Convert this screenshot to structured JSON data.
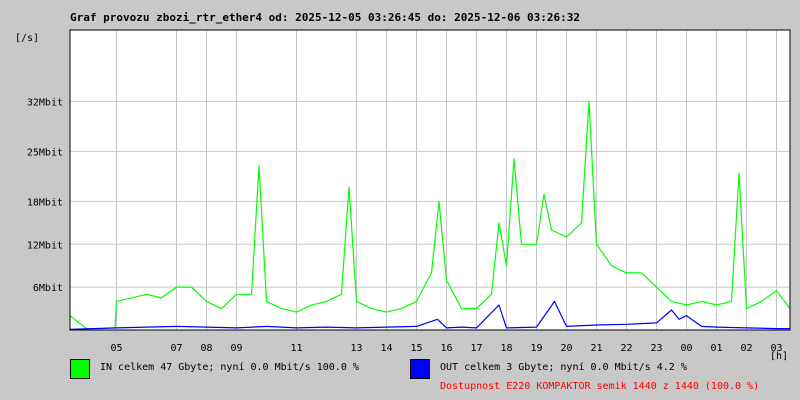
{
  "chart_data": {
    "type": "line",
    "title": "Graf provozu zbozi_rtr_ether4 od: 2025-12-05 03:26:45 do: 2025-12-06 03:26:32",
    "ylabel": "[/s]",
    "xlabel": "[h]",
    "ylim": [
      0,
      42
    ],
    "y_ticks": [
      {
        "value": 6,
        "label": "6Mbit"
      },
      {
        "value": 12,
        "label": "12Mbit"
      },
      {
        "value": 18,
        "label": "18Mbit"
      },
      {
        "value": 25,
        "label": "25Mbit"
      },
      {
        "value": 32,
        "label": "32Mbit"
      }
    ],
    "x_range": [
      3.45,
      27.45
    ],
    "x_ticks": [
      {
        "hour": 5,
        "label": "05"
      },
      {
        "hour": 7,
        "label": "07"
      },
      {
        "hour": 8,
        "label": "08"
      },
      {
        "hour": 9,
        "label": "09"
      },
      {
        "hour": 11,
        "label": "11"
      },
      {
        "hour": 13,
        "label": "13"
      },
      {
        "hour": 14,
        "label": "14"
      },
      {
        "hour": 15,
        "label": "15"
      },
      {
        "hour": 16,
        "label": "16"
      },
      {
        "hour": 17,
        "label": "17"
      },
      {
        "hour": 18,
        "label": "18"
      },
      {
        "hour": 19,
        "label": "19"
      },
      {
        "hour": 20,
        "label": "20"
      },
      {
        "hour": 21,
        "label": "21"
      },
      {
        "hour": 22,
        "label": "22"
      },
      {
        "hour": 23,
        "label": "23"
      },
      {
        "hour": 24,
        "label": "00"
      },
      {
        "hour": 25,
        "label": "01"
      },
      {
        "hour": 26,
        "label": "02"
      },
      {
        "hour": 27,
        "label": "03"
      }
    ],
    "grid": true,
    "series": [
      {
        "color": "#00ff00",
        "points": [
          [
            3.45,
            2
          ],
          [
            4.0,
            0.2
          ],
          [
            4.5,
            0.2
          ],
          [
            4.95,
            0.3
          ],
          [
            5.0,
            4
          ],
          [
            5.5,
            4.5
          ],
          [
            6.0,
            5
          ],
          [
            6.5,
            4.5
          ],
          [
            7.0,
            6
          ],
          [
            7.5,
            6
          ],
          [
            8.0,
            4
          ],
          [
            8.5,
            3
          ],
          [
            9.0,
            5
          ],
          [
            9.5,
            5
          ],
          [
            9.75,
            23
          ],
          [
            10.0,
            4
          ],
          [
            10.5,
            3
          ],
          [
            11.0,
            2.5
          ],
          [
            11.5,
            3.5
          ],
          [
            12.0,
            4
          ],
          [
            12.5,
            5
          ],
          [
            12.75,
            20
          ],
          [
            13.0,
            4
          ],
          [
            13.5,
            3
          ],
          [
            14.0,
            2.5
          ],
          [
            14.5,
            3
          ],
          [
            15.0,
            4
          ],
          [
            15.5,
            8
          ],
          [
            15.75,
            18
          ],
          [
            16.0,
            7
          ],
          [
            16.5,
            3
          ],
          [
            17.0,
            3
          ],
          [
            17.5,
            5
          ],
          [
            17.75,
            15
          ],
          [
            18.0,
            9
          ],
          [
            18.25,
            24
          ],
          [
            18.5,
            12
          ],
          [
            19.0,
            12
          ],
          [
            19.25,
            19
          ],
          [
            19.5,
            14
          ],
          [
            20.0,
            13
          ],
          [
            20.5,
            15
          ],
          [
            20.75,
            32
          ],
          [
            21.0,
            12
          ],
          [
            21.5,
            9
          ],
          [
            22.0,
            8
          ],
          [
            22.5,
            8
          ],
          [
            23.0,
            6
          ],
          [
            23.5,
            4
          ],
          [
            24.0,
            3.5
          ],
          [
            24.5,
            4
          ],
          [
            25.0,
            3.5
          ],
          [
            25.5,
            4
          ],
          [
            25.75,
            22
          ],
          [
            26.0,
            3
          ],
          [
            26.5,
            4
          ],
          [
            27.0,
            5.5
          ],
          [
            27.45,
            3
          ]
        ]
      },
      {
        "color": "#0000ff",
        "points": [
          [
            3.45,
            0.1
          ],
          [
            5.0,
            0.3
          ],
          [
            6.0,
            0.4
          ],
          [
            7.0,
            0.5
          ],
          [
            8.0,
            0.4
          ],
          [
            9.0,
            0.3
          ],
          [
            10.0,
            0.5
          ],
          [
            11.0,
            0.3
          ],
          [
            12.0,
            0.4
          ],
          [
            13.0,
            0.3
          ],
          [
            14.0,
            0.4
          ],
          [
            15.0,
            0.5
          ],
          [
            15.7,
            1.5
          ],
          [
            16.0,
            0.3
          ],
          [
            16.5,
            0.4
          ],
          [
            17.0,
            0.3
          ],
          [
            17.75,
            3.5
          ],
          [
            18.0,
            0.3
          ],
          [
            19.0,
            0.4
          ],
          [
            19.6,
            4
          ],
          [
            20.0,
            0.5
          ],
          [
            21.0,
            0.7
          ],
          [
            22.0,
            0.8
          ],
          [
            23.0,
            1.0
          ],
          [
            23.5,
            2.8
          ],
          [
            23.75,
            1.5
          ],
          [
            24.0,
            2.0
          ],
          [
            24.5,
            0.5
          ],
          [
            25.0,
            0.4
          ],
          [
            26.0,
            0.3
          ],
          [
            27.0,
            0.2
          ],
          [
            27.45,
            0.2
          ]
        ]
      }
    ]
  },
  "legend": {
    "in_color": "#00ff00",
    "in_text": "IN celkem 47 Gbyte; nyní   0.0 Mbit/s 100.0 %",
    "out_color": "#0000ff",
    "out_text": "OUT celkem 3 Gbyte; nyní   0.0 Mbit/s 4.2 %"
  },
  "availability": {
    "text": "Dostupnost E220 KOMPAKTOR semik 1440 z 1440 (100.0 %)",
    "color": "#ff0000"
  }
}
